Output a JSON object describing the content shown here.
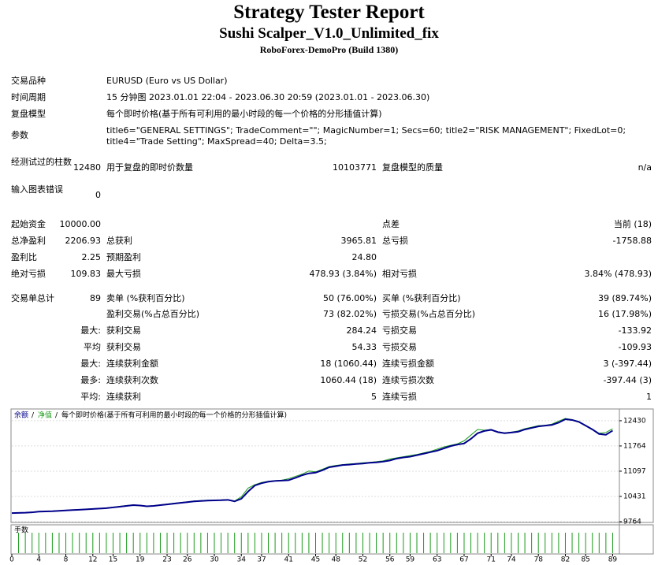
{
  "header": {
    "title": "Strategy Tester Report",
    "subtitle": "Sushi Scalper_V1.0_Unlimited_fix",
    "build": "RoboForex-DemoPro (Build 1380)"
  },
  "settings": [
    {
      "label": "交易品种",
      "value": "EURUSD (Euro vs US Dollar)"
    },
    {
      "label": "时间周期",
      "value": "15 分钟图 2023.01.01 22:04 - 2023.06.30 20:59 (2023.01.01 - 2023.06.30)"
    },
    {
      "label": "复盘模型",
      "value": "每个即时价格(基于所有可利用的最小时段的每一个价格的分形插值计算)"
    },
    {
      "label": "参数",
      "value": "title6=\"GENERAL SETTINGS\"; TradeComment=\"\"; MagicNumber=1; Secs=60; title2=\"RISK MANAGEMENT\"; FixedLot=0; title4=\"Trade Setting\"; MaxSpread=40; Delta=3.5;"
    }
  ],
  "stats": [
    [
      "经测试过的柱数",
      "12480",
      "用于复盘的即时价数量",
      "10103771",
      "复盘模型的质量",
      "n/a"
    ],
    [
      "输入图表错误",
      "0",
      null,
      null,
      null,
      null
    ],
    [
      "起始资金",
      "10000.00",
      null,
      null,
      "点差",
      "当前 (18)"
    ],
    [
      "总净盈利",
      "2206.93",
      "总获利",
      "3965.81",
      "总亏损",
      "-1758.88"
    ],
    [
      "盈利比",
      "2.25",
      "预期盈利",
      "24.80",
      null,
      null
    ],
    [
      "绝对亏损",
      "109.83",
      "最大亏损",
      "478.93 (3.84%)",
      "相对亏损",
      "3.84% (478.93)"
    ],
    [
      "交易单总计",
      "89",
      "卖单 (%获利百分比)",
      "50 (76.00%)",
      "买单 (%获利百分比)",
      "39 (89.74%)"
    ],
    [
      null,
      null,
      "盈利交易(%占总百分比)",
      "73 (82.02%)",
      "亏损交易(%占总百分比)",
      "16 (17.98%)"
    ],
    [
      null,
      "最大:",
      "获利交易",
      "284.24",
      "亏损交易",
      "-133.92"
    ],
    [
      null,
      "平均",
      "获利交易",
      "54.33",
      "亏损交易",
      "-109.93"
    ],
    [
      null,
      "最大:",
      "连续获利金额",
      "18 (1060.44)",
      "连续亏损金额",
      "3 (-397.44)"
    ],
    [
      null,
      "最多:",
      "连续获利次数",
      "1060.44 (18)",
      "连续亏损次数",
      "-397.44 (3)"
    ],
    [
      null,
      "平均:",
      "连续获利",
      "5",
      "连续亏损",
      "1"
    ]
  ],
  "chart_data": {
    "type": "line",
    "model_label": "每个即时价格(基于所有可利用的最小时段的每一个价格的分形插值计算)",
    "volume_label": "手数",
    "xlim": [
      0,
      90
    ],
    "ylim": [
      9764,
      12720
    ],
    "xticks": [
      0,
      4,
      8,
      12,
      15,
      19,
      23,
      26,
      30,
      34,
      37,
      41,
      45,
      48,
      52,
      56,
      59,
      63,
      67,
      71,
      74,
      78,
      82,
      85,
      89
    ],
    "yticks": [
      9764,
      10431,
      11097,
      11764,
      12430
    ],
    "series": [
      {
        "name": "余额",
        "color": "#00008b",
        "values": [
          9990,
          9995,
          10000,
          10010,
          10030,
          10035,
          10040,
          10050,
          10060,
          10070,
          10080,
          10090,
          10100,
          10110,
          10120,
          10140,
          10160,
          10180,
          10200,
          10190,
          10170,
          10180,
          10200,
          10220,
          10240,
          10260,
          10280,
          10300,
          10310,
          10320,
          10325,
          10330,
          10340,
          10300,
          10370,
          10560,
          10720,
          10780,
          10820,
          10840,
          10850,
          10860,
          10920,
          10990,
          11040,
          11060,
          11120,
          11200,
          11230,
          11260,
          11270,
          11290,
          11300,
          11320,
          11330,
          11350,
          11380,
          11430,
          11460,
          11480,
          11520,
          11560,
          11600,
          11640,
          11700,
          11760,
          11800,
          11830,
          11950,
          12100,
          12160,
          12190,
          12130,
          12100,
          12120,
          12140,
          12200,
          12240,
          12280,
          12300,
          12320,
          12380,
          12470,
          12450,
          12400,
          12300,
          12200,
          12080,
          12060,
          12170
        ]
      },
      {
        "name": "净值",
        "color": "#1a9a1a",
        "values": [
          9990,
          10000,
          10005,
          10015,
          10035,
          10040,
          10045,
          10055,
          10065,
          10075,
          10085,
          10095,
          10105,
          10115,
          10125,
          10150,
          10170,
          10190,
          10210,
          10195,
          10175,
          10185,
          10210,
          10230,
          10250,
          10270,
          10290,
          10310,
          10320,
          10330,
          10330,
          10340,
          10350,
          10310,
          10420,
          10650,
          10740,
          10800,
          10830,
          10850,
          10860,
          10900,
          10960,
          11020,
          11100,
          11080,
          11150,
          11220,
          11250,
          11270,
          11290,
          11300,
          11320,
          11330,
          11350,
          11370,
          11420,
          11450,
          11480,
          11510,
          11540,
          11580,
          11620,
          11680,
          11740,
          11780,
          11820,
          11900,
          12050,
          12200,
          12180,
          12200,
          12140,
          12110,
          12130,
          12160,
          12220,
          12260,
          12300,
          12310,
          12340,
          12420,
          12490,
          12460,
          12410,
          12310,
          12210,
          12100,
          12120,
          12220
        ]
      }
    ]
  }
}
